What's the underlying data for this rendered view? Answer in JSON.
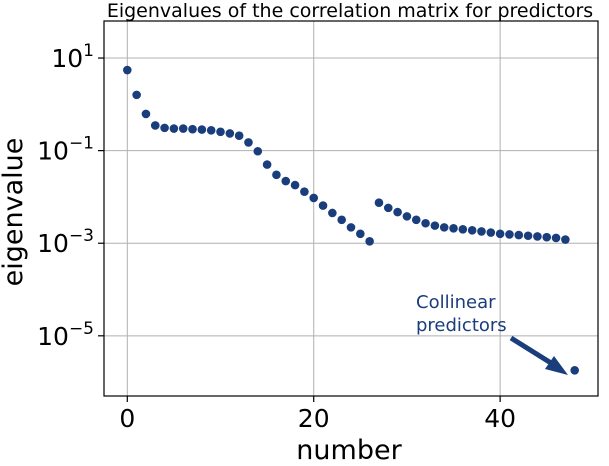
{
  "chart_data": {
    "type": "scatter",
    "title": "Eigenvalues of the correlation matrix for predictors",
    "xlabel": "number",
    "ylabel": "eigenvalue",
    "xlim": [
      -2.5,
      50.5
    ],
    "ylim_log10": [
      -6.3,
      1.8
    ],
    "yscale": "log",
    "grid": true,
    "x_ticks": [
      {
        "value": 0,
        "label": "0"
      },
      {
        "value": 20,
        "label": "20"
      },
      {
        "value": 40,
        "label": "40"
      }
    ],
    "y_ticks": [
      {
        "exponent": 1,
        "base": "10",
        "exp_label": "1"
      },
      {
        "exponent": -1,
        "base": "10",
        "exp_label": "−1"
      },
      {
        "exponent": -3,
        "base": "10",
        "exp_label": "−3"
      },
      {
        "exponent": -5,
        "base": "10",
        "exp_label": "−5"
      }
    ],
    "marker_color": "#1a3d7c",
    "series": [
      {
        "name": "eigenvalues",
        "x": [
          0,
          1,
          2,
          3,
          4,
          5,
          6,
          7,
          8,
          9,
          10,
          11,
          12,
          13,
          14,
          15,
          16,
          17,
          18,
          19,
          20,
          21,
          22,
          23,
          24,
          25,
          26,
          27,
          28,
          29,
          30,
          31,
          32,
          33,
          34,
          35,
          36,
          37,
          38,
          39,
          40,
          41,
          42,
          43,
          44,
          45,
          46,
          47,
          48
        ],
        "y": [
          5.5,
          1.6,
          0.62,
          0.35,
          0.31,
          0.3,
          0.3,
          0.29,
          0.285,
          0.275,
          0.255,
          0.235,
          0.21,
          0.15,
          0.097,
          0.05,
          0.03,
          0.022,
          0.018,
          0.013,
          0.0095,
          0.0065,
          0.0045,
          0.0032,
          0.0022,
          0.0016,
          0.0011,
          0.0075,
          0.0058,
          0.0047,
          0.0038,
          0.0032,
          0.0027,
          0.0024,
          0.0022,
          0.0021,
          0.002,
          0.0019,
          0.0018,
          0.0017,
          0.0016,
          0.00155,
          0.0015,
          0.00145,
          0.0014,
          0.00135,
          0.0013,
          0.0012,
          1.8e-06
        ]
      }
    ],
    "annotation": {
      "text_line1": "Collinear",
      "text_line2": "predictors",
      "points_to_index": 48
    }
  }
}
